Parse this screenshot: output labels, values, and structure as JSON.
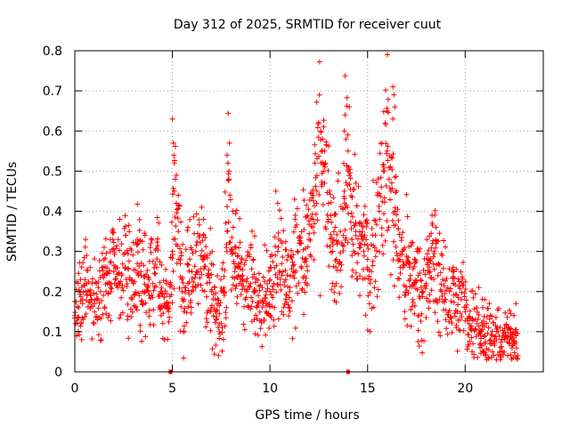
{
  "chart_data": {
    "type": "scatter",
    "title": "Day 312 of 2025, SRMTID for receiver cuut",
    "xlabel": "GPS time / hours",
    "ylabel": "SRMTID / TECUs",
    "xlim": [
      0,
      24
    ],
    "ylim": [
      0,
      0.8
    ],
    "xticks": [
      0,
      5,
      10,
      15,
      20
    ],
    "xtick_labels": [
      "0",
      "5",
      "10",
      "15",
      "20"
    ],
    "yticks": [
      0,
      0.1,
      0.2,
      0.3,
      0.4,
      0.5,
      0.6,
      0.7,
      0.8
    ],
    "ytick_labels": [
      "0",
      "0.1",
      "0.2",
      "0.3",
      "0.4",
      "0.5",
      "0.6",
      "0.7",
      "0.8"
    ],
    "grid": true,
    "marker": "+",
    "color": "#ff0000",
    "series": [
      {
        "name": "SRMTID",
        "x": [
          0.0,
          0.2,
          0.4,
          0.6,
          0.8,
          1.0,
          1.2,
          1.4,
          1.6,
          1.8,
          2.0,
          2.2,
          2.4,
          2.6,
          2.8,
          3.0,
          3.2,
          3.4,
          3.6,
          3.8,
          4.0,
          4.2,
          4.4,
          4.6,
          4.8,
          5.0,
          5.1,
          5.2,
          5.3,
          5.4,
          5.5,
          5.6,
          5.8,
          6.0,
          6.2,
          6.4,
          6.6,
          6.8,
          7.0,
          7.2,
          7.4,
          7.6,
          7.8,
          7.9,
          8.0,
          8.2,
          8.4,
          8.6,
          8.8,
          9.0,
          9.2,
          9.4,
          9.6,
          9.8,
          10.0,
          10.2,
          10.4,
          10.6,
          10.8,
          11.0,
          11.2,
          11.4,
          11.6,
          11.8,
          12.0,
          12.2,
          12.4,
          12.6,
          12.8,
          13.0,
          13.2,
          13.4,
          13.6,
          13.8,
          14.0,
          14.2,
          14.4,
          14.6,
          14.8,
          15.0,
          15.2,
          15.4,
          15.6,
          15.8,
          16.0,
          16.2,
          16.4,
          16.6,
          16.8,
          17.0,
          17.2,
          17.4,
          17.6,
          17.8,
          18.0,
          18.2,
          18.4,
          18.6,
          18.8,
          19.0,
          19.2,
          19.4,
          19.6,
          19.8,
          20.0,
          20.2,
          20.4,
          20.6,
          20.8,
          21.0,
          21.2,
          21.4,
          21.6,
          21.8,
          22.0,
          22.2,
          22.4,
          22.6
        ],
        "y": [
          0.14,
          0.16,
          0.18,
          0.22,
          0.19,
          0.17,
          0.21,
          0.24,
          0.2,
          0.22,
          0.25,
          0.21,
          0.24,
          0.26,
          0.23,
          0.22,
          0.27,
          0.24,
          0.2,
          0.23,
          0.22,
          0.26,
          0.2,
          0.17,
          0.15,
          0.3,
          0.45,
          0.42,
          0.35,
          0.27,
          0.2,
          0.18,
          0.22,
          0.25,
          0.3,
          0.34,
          0.28,
          0.24,
          0.2,
          0.15,
          0.12,
          0.2,
          0.35,
          0.48,
          0.3,
          0.25,
          0.27,
          0.24,
          0.2,
          0.22,
          0.2,
          0.19,
          0.21,
          0.2,
          0.2,
          0.22,
          0.3,
          0.27,
          0.23,
          0.2,
          0.25,
          0.3,
          0.32,
          0.28,
          0.33,
          0.38,
          0.45,
          0.52,
          0.47,
          0.38,
          0.3,
          0.28,
          0.35,
          0.45,
          0.55,
          0.33,
          0.35,
          0.32,
          0.3,
          0.28,
          0.25,
          0.34,
          0.4,
          0.5,
          0.55,
          0.45,
          0.4,
          0.28,
          0.26,
          0.27,
          0.24,
          0.22,
          0.24,
          0.2,
          0.22,
          0.25,
          0.3,
          0.24,
          0.2,
          0.18,
          0.2,
          0.22,
          0.15,
          0.18,
          0.15,
          0.12,
          0.13,
          0.12,
          0.1,
          0.09,
          0.11,
          0.07,
          0.08,
          0.06,
          0.08,
          0.09,
          0.08,
          0.09
        ]
      }
    ],
    "outliers": [
      {
        "x": 0.1,
        "y": 0.09
      },
      {
        "x": 0.3,
        "y": 0.23
      },
      {
        "x": 0.55,
        "y": 0.33
      },
      {
        "x": 0.6,
        "y": 0.29
      },
      {
        "x": 0.35,
        "y": 0.08
      },
      {
        "x": 1.5,
        "y": 0.31
      },
      {
        "x": 2.6,
        "y": 0.34
      },
      {
        "x": 2.7,
        "y": 0.13
      },
      {
        "x": 3.2,
        "y": 0.33
      },
      {
        "x": 3.6,
        "y": 0.34
      },
      {
        "x": 4.6,
        "y": 0.08
      },
      {
        "x": 4.7,
        "y": 0.22
      },
      {
        "x": 5.0,
        "y": 0.63
      },
      {
        "x": 5.05,
        "y": 0.57
      },
      {
        "x": 5.1,
        "y": 0.52
      },
      {
        "x": 5.2,
        "y": 0.49
      },
      {
        "x": 5.3,
        "y": 0.44
      },
      {
        "x": 5.6,
        "y": 0.15
      },
      {
        "x": 5.8,
        "y": 0.36
      },
      {
        "x": 6.5,
        "y": 0.41
      },
      {
        "x": 6.6,
        "y": 0.38
      },
      {
        "x": 7.4,
        "y": 0.1
      },
      {
        "x": 7.55,
        "y": 0.11
      },
      {
        "x": 7.8,
        "y": 0.54
      },
      {
        "x": 7.85,
        "y": 0.52
      },
      {
        "x": 7.9,
        "y": 0.5
      },
      {
        "x": 8.1,
        "y": 0.4
      },
      {
        "x": 8.3,
        "y": 0.17
      },
      {
        "x": 9.2,
        "y": 0.13
      },
      {
        "x": 9.8,
        "y": 0.15
      },
      {
        "x": 10.0,
        "y": 0.26
      },
      {
        "x": 10.3,
        "y": 0.45
      },
      {
        "x": 10.4,
        "y": 0.42
      },
      {
        "x": 10.6,
        "y": 0.15
      },
      {
        "x": 11.0,
        "y": 0.16
      },
      {
        "x": 11.3,
        "y": 0.39
      },
      {
        "x": 11.9,
        "y": 0.22
      },
      {
        "x": 12.3,
        "y": 0.52
      },
      {
        "x": 12.6,
        "y": 0.6
      },
      {
        "x": 12.7,
        "y": 0.58
      },
      {
        "x": 12.8,
        "y": 0.55
      },
      {
        "x": 13.0,
        "y": 0.42
      },
      {
        "x": 13.4,
        "y": 0.22
      },
      {
        "x": 13.8,
        "y": 0.6
      },
      {
        "x": 13.85,
        "y": 0.64
      },
      {
        "x": 13.9,
        "y": 0.58
      },
      {
        "x": 14.0,
        "y": 0.5
      },
      {
        "x": 14.2,
        "y": 0.29
      },
      {
        "x": 14.4,
        "y": 0.47
      },
      {
        "x": 14.6,
        "y": 0.19
      },
      {
        "x": 15.0,
        "y": 0.37
      },
      {
        "x": 15.5,
        "y": 0.44
      },
      {
        "x": 15.7,
        "y": 0.57
      },
      {
        "x": 15.9,
        "y": 0.62
      },
      {
        "x": 16.0,
        "y": 0.65
      },
      {
        "x": 16.3,
        "y": 0.71
      },
      {
        "x": 16.35,
        "y": 0.69
      },
      {
        "x": 16.4,
        "y": 0.66
      },
      {
        "x": 16.3,
        "y": 0.63
      },
      {
        "x": 16.1,
        "y": 0.48
      },
      {
        "x": 16.9,
        "y": 0.15
      },
      {
        "x": 17.6,
        "y": 0.14
      },
      {
        "x": 18.3,
        "y": 0.39
      },
      {
        "x": 18.5,
        "y": 0.36
      },
      {
        "x": 18.5,
        "y": 0.32
      },
      {
        "x": 19.0,
        "y": 0.13
      },
      {
        "x": 19.4,
        "y": 0.25
      },
      {
        "x": 20.4,
        "y": 0.07
      },
      {
        "x": 20.7,
        "y": 0.21
      },
      {
        "x": 21.0,
        "y": 0.18
      },
      {
        "x": 21.4,
        "y": 0.05
      },
      {
        "x": 21.6,
        "y": 0.03
      },
      {
        "x": 21.8,
        "y": 0.04
      },
      {
        "x": 22.6,
        "y": 0.17
      },
      {
        "x": 22.7,
        "y": 0.04
      },
      {
        "x": 22.5,
        "y": 0.14
      },
      {
        "x": 20.9,
        "y": 0.16
      }
    ],
    "zero_markers": [
      {
        "x": 4.9,
        "y": 0
      },
      {
        "x": 14.0,
        "y": 0
      }
    ]
  }
}
